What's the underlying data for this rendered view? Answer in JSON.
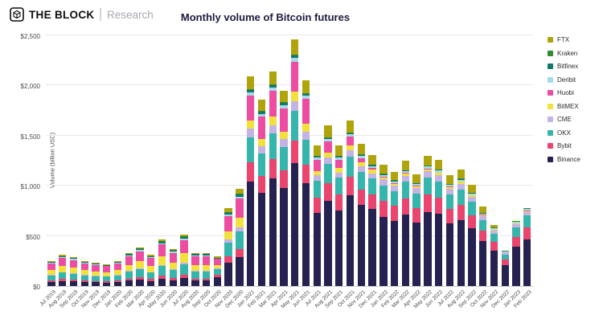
{
  "header": {
    "brand": "THE BLOCK",
    "brand_sub": "Research"
  },
  "chart_data": {
    "type": "bar",
    "stacked": true,
    "title": "Monthly volume of Bitcoin futures",
    "xlabel": "",
    "ylabel": "Volume (billion USD)",
    "ylim": [
      0,
      2500
    ],
    "grid": true,
    "legend_position": "right",
    "yticks": [
      "$0",
      "$500",
      "$1,000",
      "$1,500",
      "$2,000",
      "$2,500"
    ],
    "ytick_values": [
      0,
      500,
      1000,
      1500,
      2000,
      2500
    ],
    "categories": [
      "Jul 2019",
      "Aug 2019",
      "Sep 2019",
      "Oct 2019",
      "Nov 2019",
      "Dec 2019",
      "Jan 2020",
      "Feb 2020",
      "Mar 2020",
      "Apr 2020",
      "May 2020",
      "Jun 2020",
      "Jul 2020",
      "Aug 2020",
      "Sep 2020",
      "Oct 2020",
      "Nov 2020",
      "Dec 2020",
      "Jan 2021",
      "Feb 2021",
      "Mar 2021",
      "Apr 2021",
      "May 2021",
      "Jun 2021",
      "Jul 2021",
      "Aug 2021",
      "Sep 2021",
      "Oct 2021",
      "Nov 2021",
      "Dec 2021",
      "Jan 2022",
      "Feb 2022",
      "Mar 2022",
      "Apr 2022",
      "May 2022",
      "Jun 2022",
      "Jul 2022",
      "Aug 2022",
      "Sep 2022",
      "Oct 2022",
      "Nov 2022",
      "Dec 2022",
      "Jan 2023",
      "Feb 2023"
    ],
    "series": [
      {
        "name": "Binance",
        "color": "#252150",
        "values": [
          40,
          50,
          46,
          40,
          37,
          35,
          40,
          53,
          62,
          50,
          74,
          59,
          82,
          53,
          53,
          90,
          234,
          291,
          1045,
          930,
          1070,
          975,
          1230,
          1025,
          728,
          848,
          756,
          908,
          809,
          773,
          690,
          650,
          713,
          633,
          741,
          718,
          627,
          661,
          576,
          450,
          355,
          210,
          390,
          468
        ]
      },
      {
        "name": "Bybit",
        "color": "#e9456f",
        "values": [
          15,
          19,
          17,
          15,
          14,
          13,
          15,
          20,
          23,
          19,
          28,
          22,
          31,
          20,
          20,
          24,
          62,
          78,
          188,
          167,
          193,
          176,
          221,
          185,
          154,
          176,
          154,
          182,
          156,
          144,
          157,
          148,
          163,
          144,
          169,
          164,
          143,
          151,
          131,
          103,
          85,
          53,
          98,
          117
        ]
      },
      {
        "name": "OKX",
        "color": "#35b5ab",
        "values": [
          53,
          65,
          61,
          53,
          48,
          46,
          53,
          69,
          81,
          65,
          97,
          78,
          107,
          69,
          69,
          54,
          140,
          175,
          251,
          223,
          257,
          234,
          295,
          246,
          168,
          192,
          168,
          198,
          170,
          157,
          157,
          148,
          163,
          144,
          169,
          164,
          143,
          151,
          131,
          103,
          85,
          53,
          98,
          117
        ]
      },
      {
        "name": "CME",
        "color": "#c5b3e6",
        "values": [
          5,
          6,
          6,
          5,
          5,
          4,
          5,
          7,
          8,
          6,
          9,
          7,
          10,
          7,
          7,
          12,
          31,
          39,
          84,
          74,
          86,
          78,
          98,
          82,
          56,
          64,
          56,
          66,
          57,
          52,
          61,
          57,
          63,
          56,
          65,
          63,
          55,
          58,
          51,
          40,
          31,
          18,
          33,
          39
        ]
      },
      {
        "name": "BitMEX",
        "color": "#f2e13c",
        "values": [
          48,
          59,
          55,
          48,
          44,
          42,
          48,
          63,
          73,
          59,
          87,
          70,
          97,
          63,
          63,
          30,
          78,
          97,
          84,
          74,
          86,
          78,
          98,
          82,
          42,
          48,
          42,
          50,
          43,
          39,
          18,
          17,
          19,
          17,
          20,
          19,
          17,
          17,
          15,
          12,
          6,
          4,
          7,
          8
        ]
      },
      {
        "name": "Huobi",
        "color": "#ec4da0",
        "values": [
          65,
          81,
          75,
          65,
          60,
          57,
          65,
          86,
          100,
          81,
          120,
          96,
          133,
          86,
          86,
          60,
          156,
          194,
          251,
          223,
          257,
          234,
          295,
          246,
          112,
          112,
          84,
          83,
          43,
          13,
          6,
          6,
          6,
          6,
          7,
          6,
          6,
          6,
          5,
          4,
          3,
          2,
          3,
          4
        ]
      },
      {
        "name": "Deribit",
        "color": "#a6d9e9",
        "values": [
          8,
          9,
          9,
          8,
          7,
          7,
          8,
          10,
          12,
          9,
          14,
          11,
          15,
          10,
          10,
          6,
          16,
          19,
          31,
          28,
          32,
          29,
          37,
          31,
          21,
          24,
          21,
          25,
          21,
          20,
          18,
          17,
          19,
          17,
          20,
          19,
          17,
          17,
          15,
          12,
          12,
          7,
          13,
          16
        ]
      },
      {
        "name": "Bitfinex",
        "color": "#14776c",
        "values": [
          8,
          9,
          9,
          8,
          7,
          7,
          8,
          10,
          12,
          9,
          14,
          11,
          15,
          10,
          10,
          6,
          16,
          19,
          21,
          19,
          21,
          20,
          25,
          21,
          11,
          13,
          11,
          13,
          11,
          10,
          6,
          6,
          6,
          6,
          7,
          6,
          6,
          6,
          5,
          4,
          3,
          2,
          3,
          4
        ]
      },
      {
        "name": "Kraken",
        "color": "#2f8d30",
        "values": [
          3,
          3,
          3,
          3,
          2,
          2,
          3,
          3,
          4,
          3,
          5,
          4,
          5,
          3,
          3,
          3,
          8,
          10,
          10,
          9,
          11,
          10,
          12,
          10,
          6,
          6,
          6,
          7,
          6,
          5,
          6,
          6,
          6,
          6,
          7,
          6,
          6,
          6,
          5,
          4,
          6,
          4,
          7,
          8
        ]
      },
      {
        "name": "FTX",
        "color": "#b0a40d",
        "values": [
          8,
          9,
          9,
          8,
          7,
          7,
          8,
          10,
          12,
          9,
          14,
          11,
          15,
          10,
          10,
          15,
          39,
          48,
          125,
          112,
          128,
          117,
          148,
          123,
          102,
          117,
          102,
          120,
          104,
          96,
          91,
          86,
          94,
          83,
          98,
          95,
          83,
          87,
          76,
          59,
          24,
          0,
          0,
          0
        ]
      }
    ]
  }
}
